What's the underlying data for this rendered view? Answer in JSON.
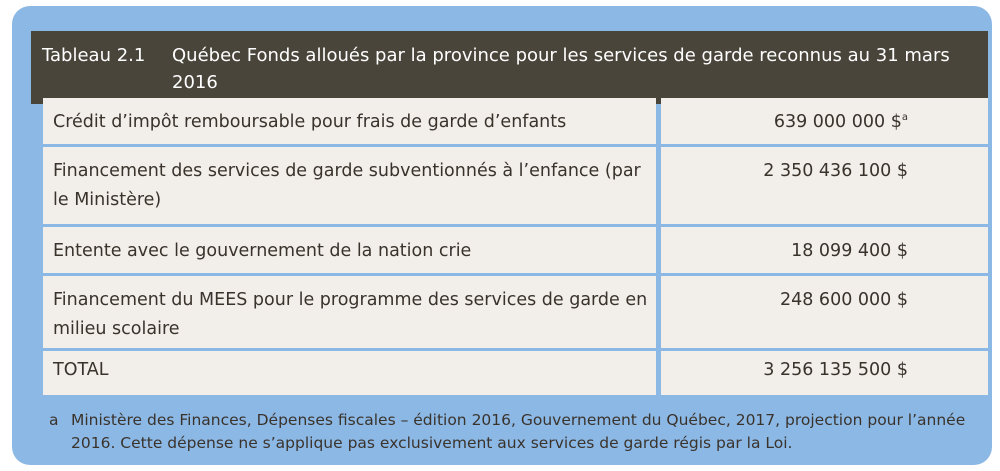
{
  "table": {
    "number": "Tableau 2.1",
    "title": "Québec Fonds alloués par la province pour les services de garde reconnus au 31 mars 2016",
    "rows": [
      {
        "label": "Crédit d’impôt remboursable pour frais de garde d’enfants",
        "value": "639 000 000 $",
        "note": "a"
      },
      {
        "label": "Financement des services de garde subventionnés à l’enfance (par le Ministère)",
        "value": "2 350 436 100 $"
      },
      {
        "label": "Entente avec le gouvernement de la nation crie",
        "value": "18 099 400 $"
      },
      {
        "label": "Financement du MEES pour le programme des services de garde en milieu scolaire",
        "value": "248 600 000 $"
      }
    ],
    "total": {
      "label": "TOTAL",
      "value": "3 256 135 500 $"
    }
  },
  "footnote": {
    "letter": "a",
    "text": "Ministère des Finances, Dépenses fiscales – édition 2016, Gouvernement du Québec, 2017, projection pour l’année 2016. Cette dépense ne s’applique pas exclusivement aux services de garde régis par la Loi."
  },
  "colors": {
    "frame": "#8cb8e6",
    "header": "#4a453b",
    "cell": "#f2eeea",
    "text": "#3a332c"
  }
}
